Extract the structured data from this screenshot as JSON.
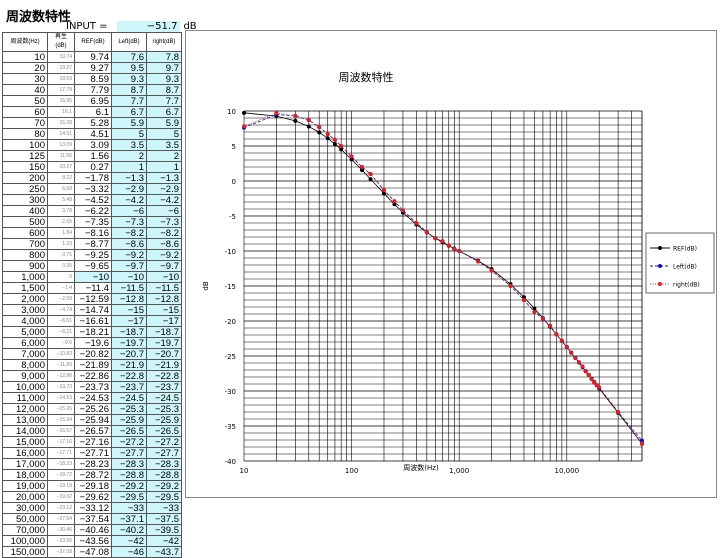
{
  "sheet": {
    "title": "周波数特性",
    "input_label": "INPUT =",
    "input_value": "−51.7",
    "input_unit": "dB",
    "headers": [
      "周波数(Hz)",
      "再生(dB)",
      "REF(dB)",
      "Left(dB)",
      "right(dB)"
    ],
    "rows": [
      [
        "10",
        "19.74",
        "9.74",
        "7.6",
        "7.8"
      ],
      [
        "20",
        "19.27",
        "9.27",
        "9.5",
        "9.7"
      ],
      [
        "30",
        "18.59",
        "8.59",
        "9.3",
        "9.3"
      ],
      [
        "40",
        "17.79",
        "7.79",
        "8.7",
        "8.7"
      ],
      [
        "50",
        "16.95",
        "6.95",
        "7.7",
        "7.7"
      ],
      [
        "60",
        "16.1",
        "6.1",
        "6.7",
        "6.7"
      ],
      [
        "70",
        "15.28",
        "5.28",
        "5.9",
        "5.9"
      ],
      [
        "80",
        "14.51",
        "4.51",
        "5",
        "5"
      ],
      [
        "100",
        "13.09",
        "3.09",
        "3.5",
        "3.5"
      ],
      [
        "125",
        "11.56",
        "1.56",
        "2",
        "2"
      ],
      [
        "150",
        "10.27",
        "0.27",
        "1",
        "1"
      ],
      [
        "200",
        "8.22",
        "−1.78",
        "−1.3",
        "−1.3"
      ],
      [
        "250",
        "6.68",
        "−3.32",
        "−2.9",
        "−2.9"
      ],
      [
        "300",
        "5.48",
        "−4.52",
        "−4.2",
        "−4.2"
      ],
      [
        "400",
        "3.78",
        "−6.22",
        "−6",
        "−6"
      ],
      [
        "500",
        "2.65",
        "−7.35",
        "−7.3",
        "−7.3"
      ],
      [
        "600",
        "1.84",
        "−8.16",
        "−8.2",
        "−8.2"
      ],
      [
        "700",
        "1.23",
        "−8.77",
        "−8.6",
        "−8.6"
      ],
      [
        "800",
        "0.75",
        "−9.25",
        "−9.2",
        "−9.2"
      ],
      [
        "900",
        "0.35",
        "−9.65",
        "−9.7",
        "−9.7"
      ],
      [
        "1,000",
        "0",
        "−10",
        "−10",
        "−10"
      ],
      [
        "1,500",
        "−1.4",
        "−11.4",
        "−11.5",
        "−11.5"
      ],
      [
        "2,000",
        "−2.59",
        "−12.59",
        "−12.8",
        "−12.8"
      ],
      [
        "3,000",
        "−4.74",
        "−14.74",
        "−15",
        "−15"
      ],
      [
        "4,000",
        "−6.61",
        "−16.61",
        "−17",
        "−17"
      ],
      [
        "5,000",
        "−8.21",
        "−18.21",
        "−18.7",
        "−18.7"
      ],
      [
        "6,000",
        "−9.6",
        "−19.6",
        "−19.7",
        "−19.7"
      ],
      [
        "7,000",
        "−10.82",
        "−20.82",
        "−20.7",
        "−20.7"
      ],
      [
        "8,000",
        "−11.89",
        "−21.89",
        "−21.9",
        "−21.9"
      ],
      [
        "9,000",
        "−12.86",
        "−22.86",
        "−22.8",
        "−22.8"
      ],
      [
        "10,000",
        "−13.73",
        "−23.73",
        "−23.7",
        "−23.7"
      ],
      [
        "11,000",
        "−14.53",
        "−24.53",
        "−24.5",
        "−24.5"
      ],
      [
        "12,000",
        "−15.26",
        "−25.26",
        "−25.3",
        "−25.3"
      ],
      [
        "13,000",
        "−15.94",
        "−25.94",
        "−25.9",
        "−25.9"
      ],
      [
        "14,000",
        "−16.57",
        "−26.57",
        "−26.5",
        "−26.5"
      ],
      [
        "15,000",
        "−17.16",
        "−27.16",
        "−27.2",
        "−27.2"
      ],
      [
        "16,000",
        "−17.71",
        "−27.71",
        "−27.7",
        "−27.7"
      ],
      [
        "17,000",
        "−18.23",
        "−28.23",
        "−28.3",
        "−28.3"
      ],
      [
        "18,000",
        "−18.72",
        "−28.72",
        "−28.8",
        "−28.8"
      ],
      [
        "19,000",
        "−19.18",
        "−29.18",
        "−29.2",
        "−29.2"
      ],
      [
        "20,000",
        "−19.62",
        "−29.62",
        "−29.5",
        "−29.5"
      ],
      [
        "30,000",
        "−23.12",
        "−33.12",
        "−33",
        "−33"
      ],
      [
        "50,000",
        "−27.54",
        "−37.54",
        "−37.1",
        "−37.5"
      ],
      [
        "70,000",
        "−30.46",
        "−40.46",
        "−40.2",
        "−39.5"
      ],
      [
        "100,000",
        "−33.56",
        "−43.56",
        "−42",
        "−42"
      ],
      [
        "150,000",
        "−37.08",
        "−47.08",
        "−46",
        "−43.7"
      ]
    ]
  },
  "chart_data": {
    "type": "line",
    "title": "周波数特性",
    "xlabel": "周波数(Hz)",
    "ylabel": "dB",
    "xscale": "log",
    "xlim": [
      10,
      50000
    ],
    "ylim": [
      -40,
      10
    ],
    "xticks": [
      "10",
      "100",
      "1,000",
      "10,000"
    ],
    "yticks": [
      "10",
      "5",
      "0",
      "-5",
      "-10",
      "-15",
      "-20",
      "-25",
      "-30",
      "-35",
      "-40"
    ],
    "grid": true,
    "legend": "right",
    "x": [
      10,
      20,
      30,
      40,
      50,
      60,
      70,
      80,
      100,
      125,
      150,
      200,
      250,
      300,
      400,
      500,
      600,
      700,
      800,
      900,
      1000,
      1500,
      2000,
      3000,
      4000,
      5000,
      6000,
      7000,
      8000,
      9000,
      10000,
      11000,
      12000,
      13000,
      14000,
      15000,
      16000,
      17000,
      18000,
      19000,
      20000,
      30000,
      50000
    ],
    "series": [
      {
        "name": "REF(dB)",
        "color": "#000000",
        "values": [
          9.74,
          9.27,
          8.59,
          7.79,
          6.95,
          6.1,
          5.28,
          4.51,
          3.09,
          1.56,
          0.27,
          -1.78,
          -3.32,
          -4.52,
          -6.22,
          -7.35,
          -8.16,
          -8.77,
          -9.25,
          -9.65,
          -10,
          -11.4,
          -12.59,
          -14.74,
          -16.61,
          -18.21,
          -19.6,
          -20.82,
          -21.89,
          -22.86,
          -23.73,
          -24.53,
          -25.26,
          -25.94,
          -26.57,
          -27.16,
          -27.71,
          -28.23,
          -28.72,
          -29.18,
          -29.62,
          -33.12,
          -37.54
        ]
      },
      {
        "name": "Left(dB)",
        "color": "#1010c0",
        "values": [
          7.6,
          9.5,
          9.3,
          8.7,
          7.7,
          6.7,
          5.9,
          5,
          3.5,
          2,
          1,
          -1.3,
          -2.9,
          -4.2,
          -6,
          -7.3,
          -8.2,
          -8.6,
          -9.2,
          -9.7,
          -10,
          -11.5,
          -12.8,
          -15,
          -17,
          -18.7,
          -19.7,
          -20.7,
          -21.9,
          -22.8,
          -23.7,
          -24.5,
          -25.3,
          -25.9,
          -26.5,
          -27.2,
          -27.7,
          -28.3,
          -28.8,
          -29.2,
          -29.5,
          -33,
          -37.1
        ]
      },
      {
        "name": "right(dB)",
        "color": "#e02020",
        "values": [
          7.8,
          9.7,
          9.3,
          8.7,
          7.7,
          6.7,
          5.9,
          5,
          3.5,
          2,
          1,
          -1.3,
          -2.9,
          -4.2,
          -6,
          -7.3,
          -8.2,
          -8.6,
          -9.2,
          -9.7,
          -10,
          -11.5,
          -12.8,
          -15,
          -17,
          -18.7,
          -19.7,
          -20.7,
          -21.9,
          -22.8,
          -23.7,
          -24.5,
          -25.3,
          -25.9,
          -26.5,
          -27.2,
          -27.7,
          -28.3,
          -28.8,
          -29.2,
          -29.5,
          -33,
          -37.5
        ]
      }
    ]
  }
}
